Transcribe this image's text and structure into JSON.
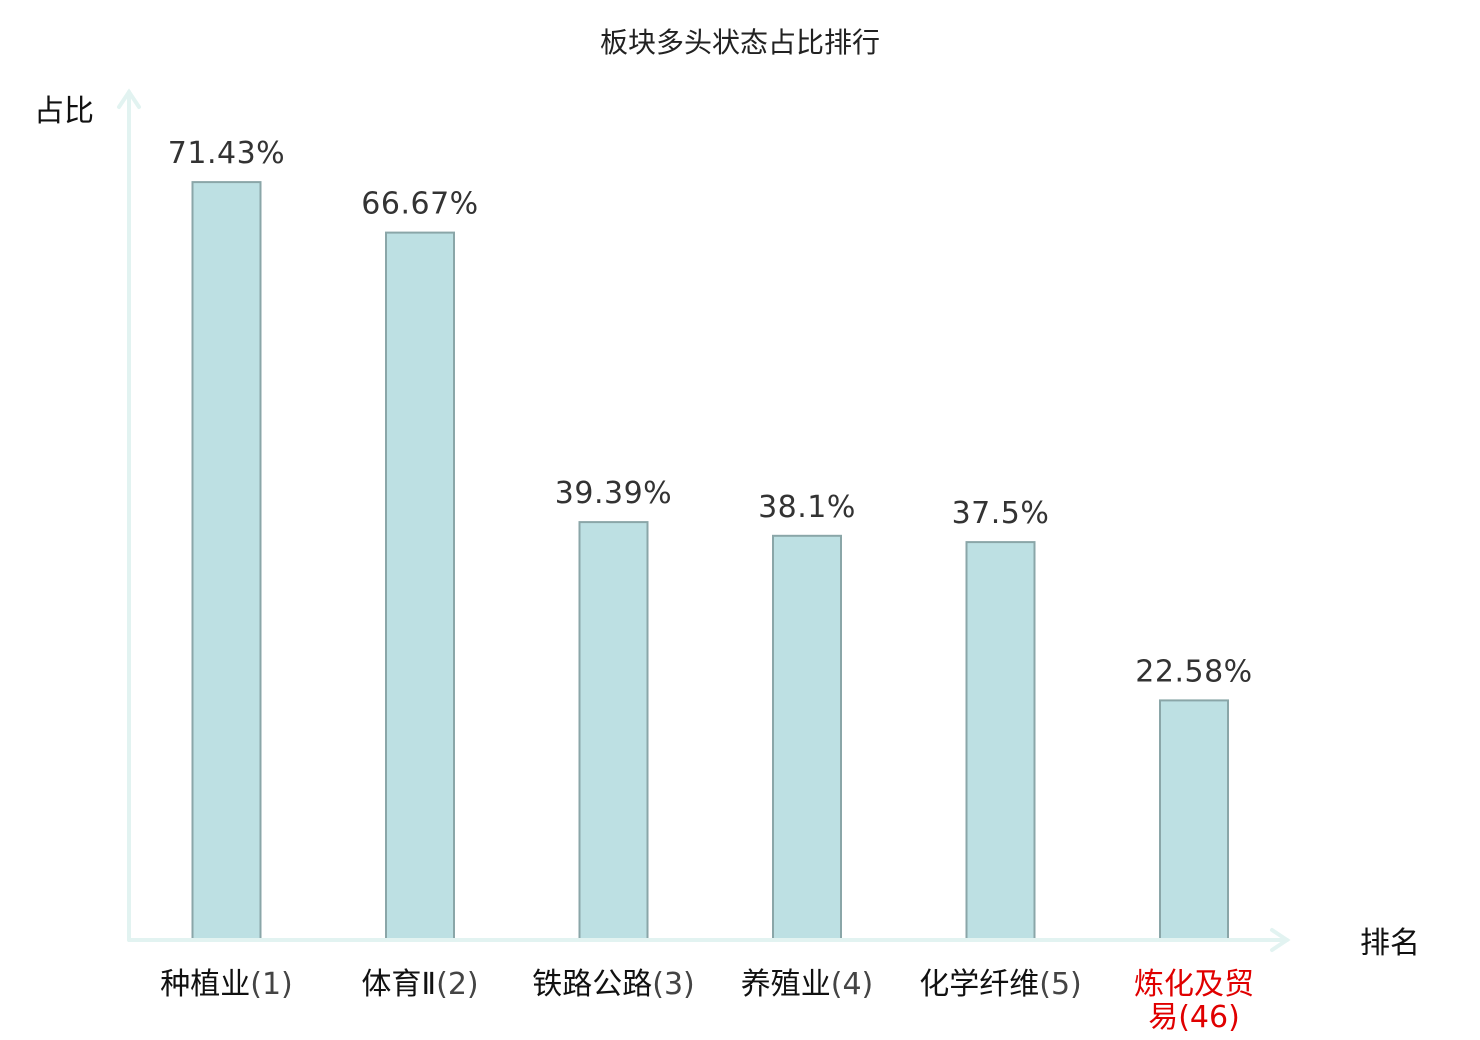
{
  "chart_data": {
    "type": "bar",
    "title": "板块多头状态占比排行",
    "ylabel": "占比",
    "xlabel": "排名",
    "categories": [
      {
        "name": "种植业",
        "rank": "(1)",
        "highlight": false
      },
      {
        "name": "体育Ⅱ",
        "rank": "(2)",
        "highlight": false
      },
      {
        "name": "铁路公路",
        "rank": "(3)",
        "highlight": false
      },
      {
        "name": "养殖业",
        "rank": "(4)",
        "highlight": false
      },
      {
        "name": "化学纤维",
        "rank": "(5)",
        "highlight": false
      },
      {
        "name": "炼化及贸易",
        "rank": "(46)",
        "highlight": true
      }
    ],
    "values": [
      71.43,
      66.67,
      39.39,
      38.1,
      37.5,
      22.58
    ],
    "value_labels": [
      "71.43%",
      "66.67%",
      "39.39%",
      "38.1%",
      "37.5%",
      "22.58%"
    ],
    "unit": "%",
    "ylim": [
      0,
      80
    ],
    "grid": false,
    "legend": "none",
    "colors": {
      "bar_fill": "#bde0e3",
      "bar_stroke": "#8aa6a8",
      "axis": "#e2f3f1",
      "highlight_label": "#e00000"
    }
  }
}
